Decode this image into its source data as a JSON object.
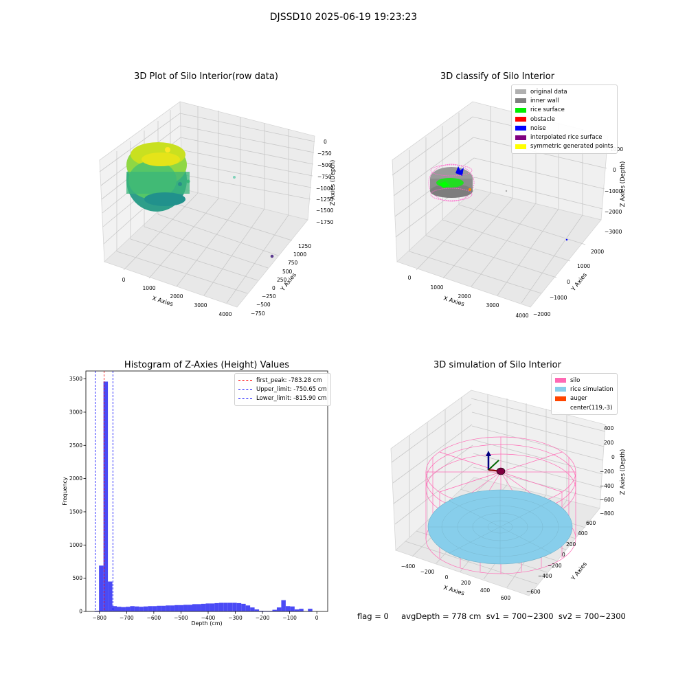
{
  "suptitle": "DJSSD10 2025-06-19 19:23:23",
  "footer": {
    "text": "flag = 0     avgDepth = 778 cm  sv1 = 700~2300  sv2 = 700~2300"
  },
  "colors": {
    "original_data": "#b0b0b0",
    "inner_wall": "#808080",
    "rice_surface": "#00ee00",
    "obstacle": "#ff0000",
    "noise": "#0000ff",
    "interpolated": "#800080",
    "symmetric": "#ffff00",
    "silo": "#ff69b4",
    "rice_sim": "#87ceeb",
    "auger": "#ff4500",
    "hist_bar": "#4a4af5"
  },
  "chart_data": [
    {
      "type": "scatter",
      "subtype": "3d",
      "title": "3D Plot of Silo Interior(row data)",
      "xlabel": "X Axies",
      "ylabel": "Y Axies",
      "zlabel": "Z Axies (Depth)",
      "x_ticks": [
        "0",
        "1000",
        "2000",
        "3000",
        "4000"
      ],
      "y_ticks": [
        "−750",
        "−500",
        "−250",
        "0",
        "250",
        "500",
        "750",
        "1000",
        "1250"
      ],
      "z_ticks": [
        "0",
        "−250",
        "−500",
        "−750",
        "−1000",
        "−1250",
        "−1500",
        "−1750"
      ],
      "colormap": "viridis",
      "grid": true
    },
    {
      "type": "scatter",
      "subtype": "3d",
      "title": "3D classify of Silo Interior",
      "xlabel": "X Axies",
      "ylabel": "Y Axies",
      "zlabel": "Z Axies (Depth)",
      "x_ticks": [
        "0",
        "1000",
        "2000",
        "3000",
        "4000"
      ],
      "y_ticks": [
        "−2000",
        "−1000",
        "0",
        "1000",
        "2000"
      ],
      "z_ticks": [
        "1000",
        "0",
        "−1000",
        "−2000",
        "−3000"
      ],
      "legend_position": "top-right",
      "legend": [
        "original data",
        "inner wall",
        "rice surface",
        "obstacle",
        "noise",
        "interpolated rice surface",
        "symmetric generated points"
      ],
      "grid": true
    },
    {
      "type": "bar",
      "subtype": "histogram",
      "title": "Histogram of Z-Axies (Height) Values",
      "xlabel": "Depth (cm)",
      "ylabel": "Frequency",
      "xlim": [
        -850,
        40
      ],
      "ylim": [
        0,
        3620
      ],
      "x_ticks": [
        -800,
        -700,
        -600,
        -500,
        -400,
        -300,
        -200,
        -100,
        0
      ],
      "y_ticks": [
        0,
        500,
        1000,
        1500,
        2000,
        2500,
        3000,
        3500
      ],
      "bin_start": -818,
      "bin_width": 16.36,
      "values": [
        10,
        690,
        3460,
        450,
        80,
        70,
        65,
        70,
        80,
        75,
        70,
        75,
        80,
        80,
        85,
        85,
        90,
        90,
        95,
        95,
        100,
        100,
        110,
        110,
        115,
        120,
        120,
        125,
        130,
        130,
        130,
        130,
        125,
        115,
        90,
        60,
        30,
        10,
        8,
        8,
        25,
        60,
        170,
        80,
        75,
        30,
        40,
        5,
        40
      ],
      "vlines": [
        {
          "label": "first_peak: -783.28 cm",
          "x": -783.28,
          "color": "#ff0000"
        },
        {
          "label": "Upper_limit: -750.65 cm",
          "x": -750.65,
          "color": "#0000ff"
        },
        {
          "label": "Lower_limit: -815.90 cm",
          "x": -815.9,
          "color": "#0000ff"
        }
      ],
      "legend_position": "top-right",
      "grid": false
    },
    {
      "type": "scatter",
      "subtype": "3d",
      "title": "3D simulation of Silo Interior",
      "xlabel": "X Axies",
      "ylabel": "Y Axies",
      "zlabel": "Z Axies (Depth)",
      "x_ticks": [
        "−400",
        "−200",
        "0",
        "200",
        "400",
        "600"
      ],
      "y_ticks": [
        "−600",
        "−400",
        "−200",
        "0",
        "200",
        "400",
        "600"
      ],
      "z_ticks": [
        "400",
        "200",
        "0",
        "−200",
        "−400",
        "−600",
        "−800"
      ],
      "legend_position": "top-right",
      "legend": [
        "silo",
        "rice simulation",
        "auger",
        "center(119,-3)"
      ],
      "grid": true
    }
  ]
}
